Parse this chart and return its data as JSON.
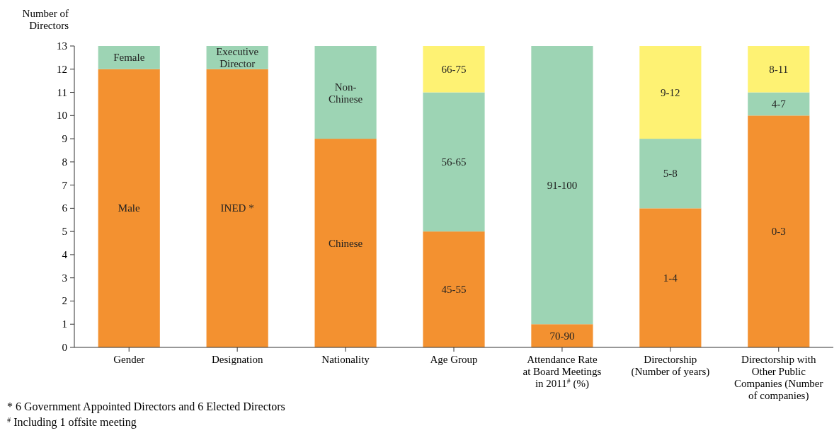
{
  "chart_data": {
    "type": "bar",
    "stacked": true,
    "ylabel": "Number of Directors",
    "categories": [
      "Gender",
      "Designation",
      "Nationality",
      "Age Group",
      "Attendance Rate at Board Meetings in 2011$^{#}$ (%)",
      "Directorship (Number of years)",
      "Directorship with Other Public Companies (Number of companies)"
    ],
    "series": [
      {
        "color": "#f39130",
        "values": [
          12,
          12,
          9,
          5,
          1,
          6,
          10
        ],
        "value_labels": [
          "Male",
          "INED *",
          "Chinese",
          "45-55",
          "70-90",
          "1-4",
          "0-3"
        ]
      },
      {
        "color": "#9dd4b4",
        "values": [
          1,
          1,
          4,
          6,
          12,
          3,
          1
        ],
        "value_labels": [
          "Female",
          "Executive Director",
          "Non-Chinese",
          "56-65",
          "91-100",
          "5-8",
          "4-7"
        ]
      },
      {
        "color": "#fef273",
        "values": [
          null,
          null,
          null,
          2,
          null,
          4,
          2
        ],
        "value_labels": [
          null,
          null,
          null,
          "66-75",
          null,
          "9-12",
          "8-11"
        ]
      }
    ],
    "ylim": [
      0,
      13
    ],
    "yticks": [
      0,
      1,
      2,
      3,
      4,
      5,
      6,
      7,
      8,
      9,
      10,
      11,
      12,
      13
    ],
    "grid": false,
    "annotations": [
      "* 6 Government Appointed Directors and 6 Elected Directors",
      "$^{#}$ Including 1 offsite meeting"
    ]
  }
}
